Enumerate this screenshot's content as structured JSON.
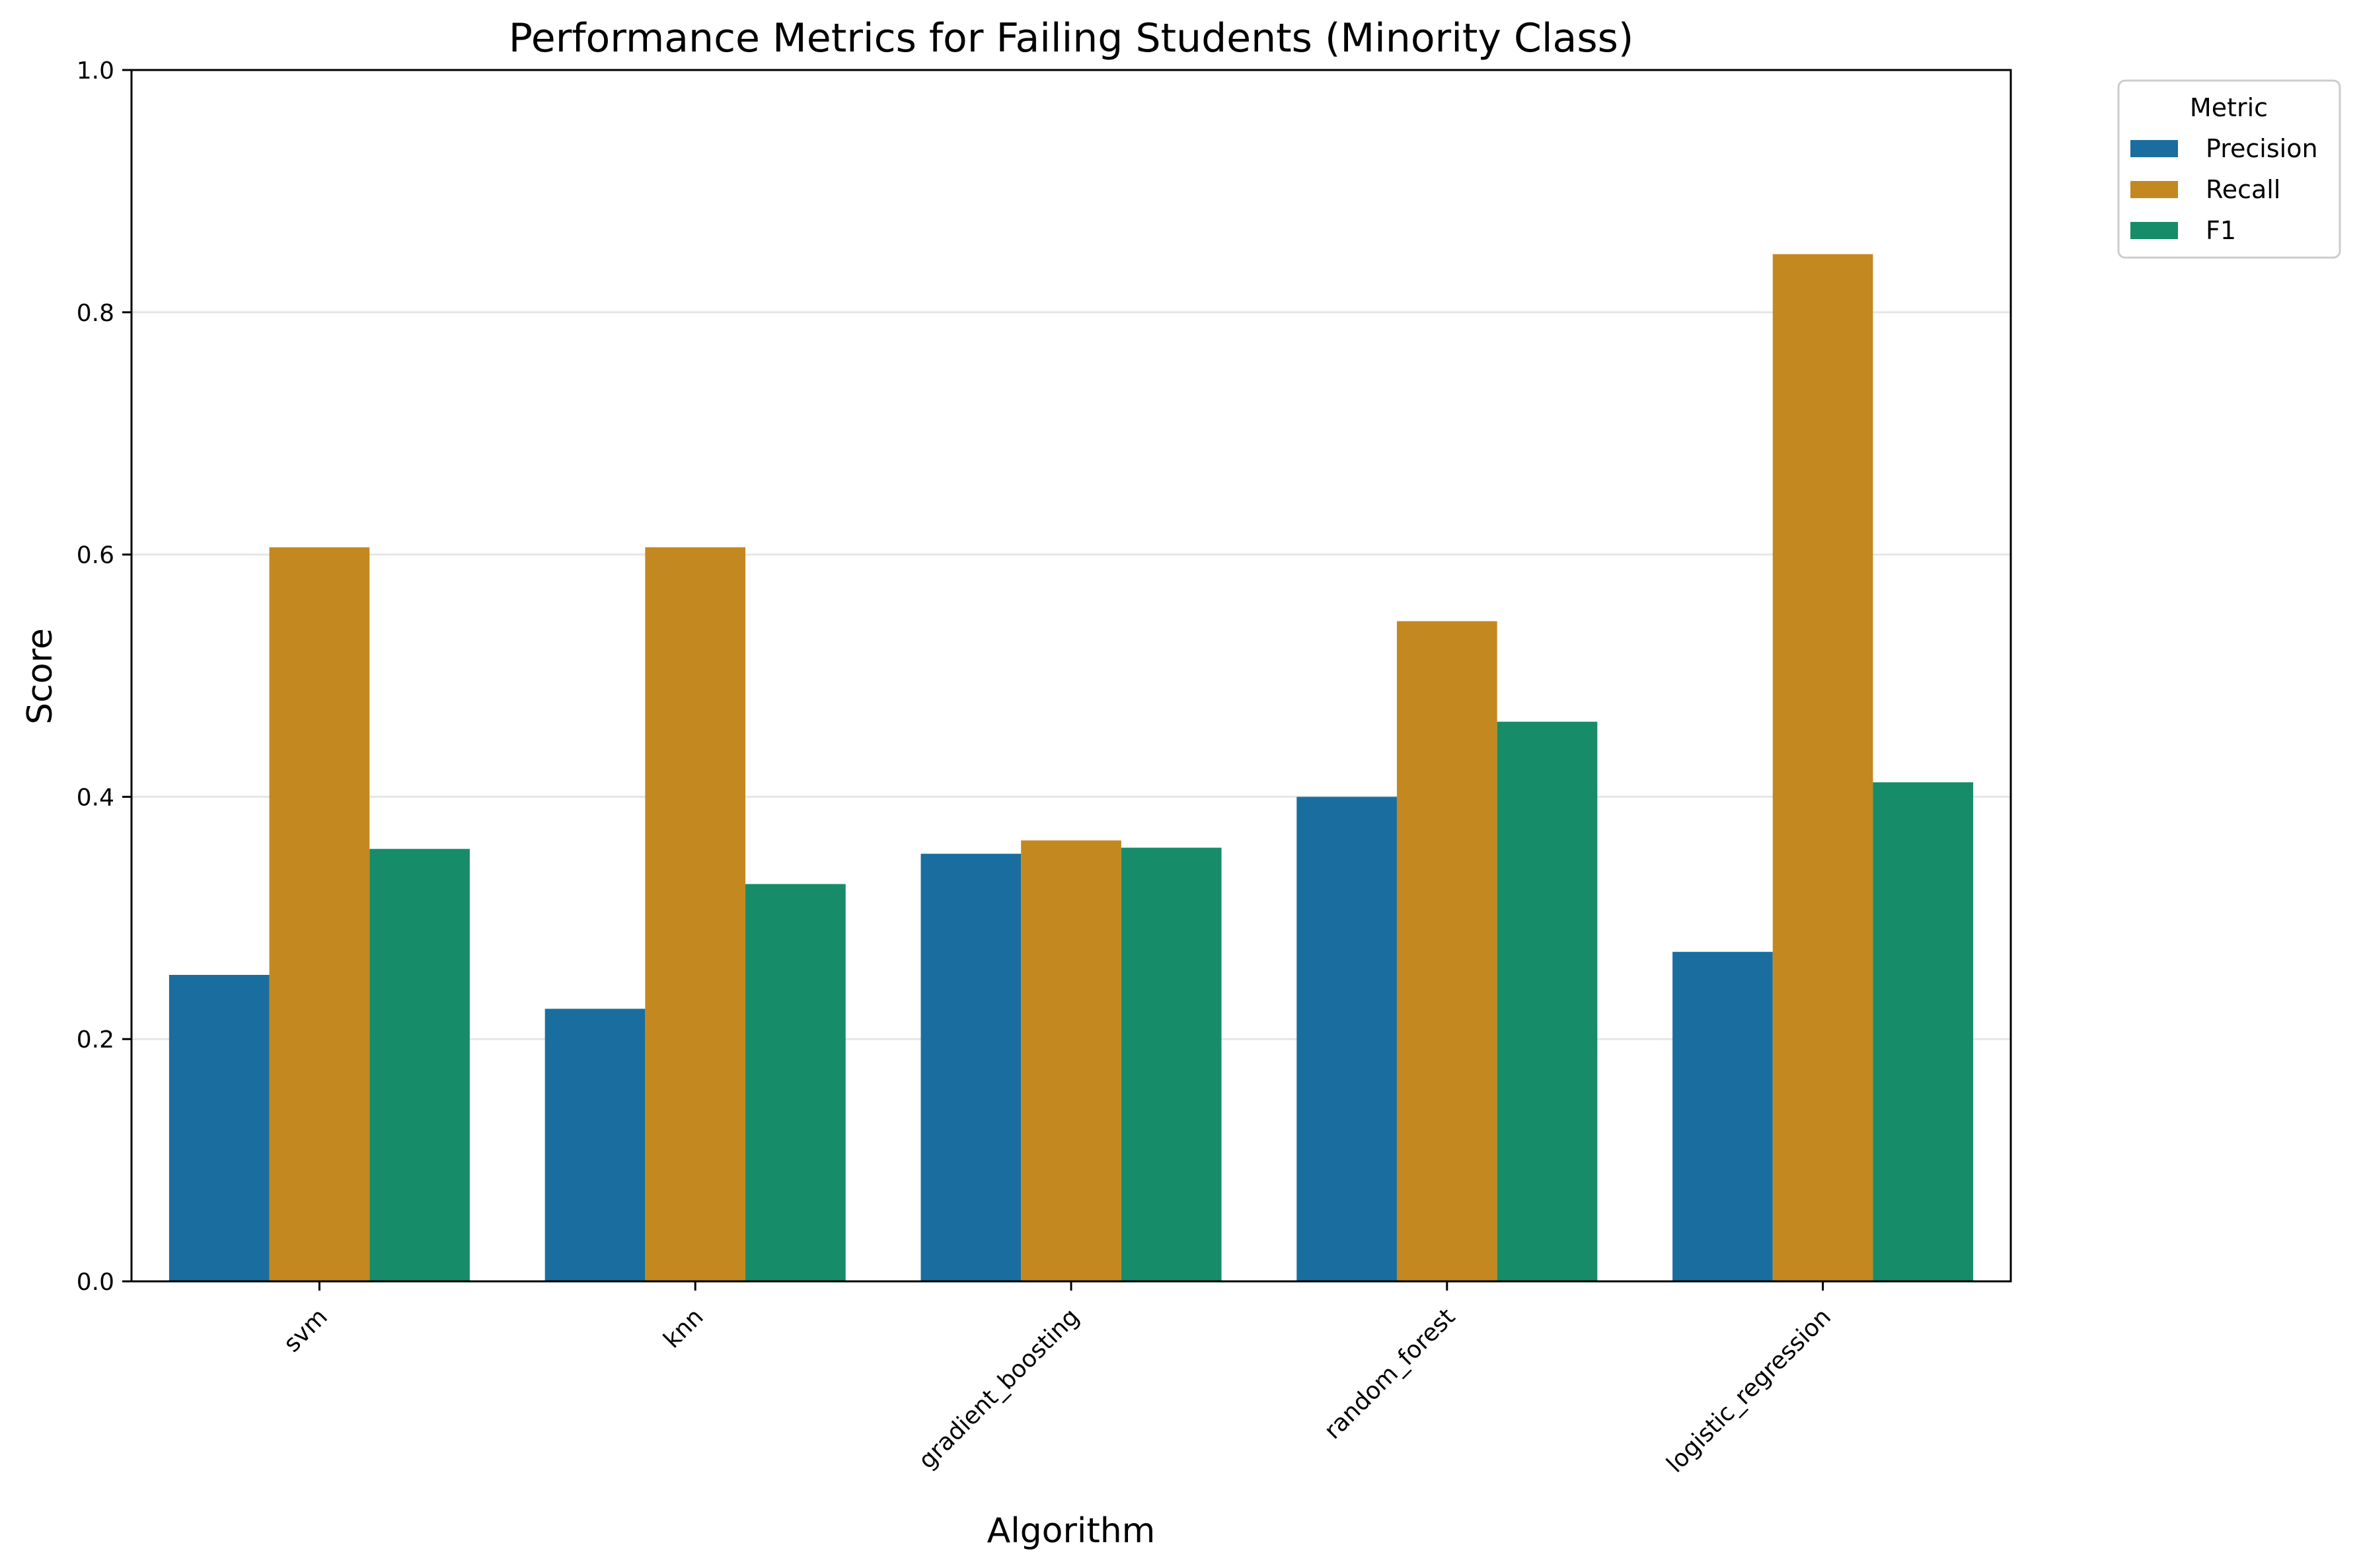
{
  "chart_data": {
    "type": "bar",
    "title": "Performance Metrics for Failing Students (Minority Class)",
    "xlabel": "Algorithm",
    "ylabel": "Score",
    "ylim": [
      0,
      1.0
    ],
    "yticks": [
      "0.0",
      "0.2",
      "0.4",
      "0.6",
      "0.8",
      "1.0"
    ],
    "categories": [
      "svm",
      "knn",
      "gradient_boosting",
      "random_forest",
      "logistic_regression"
    ],
    "series": [
      {
        "name": "Precision",
        "color": "#1a6e9f",
        "values": [
          0.253,
          0.225,
          0.353,
          0.4,
          0.272
        ]
      },
      {
        "name": "Recall",
        "color": "#c48820",
        "values": [
          0.606,
          0.606,
          0.364,
          0.545,
          0.848
        ]
      },
      {
        "name": "F1",
        "color": "#168c69",
        "values": [
          0.357,
          0.328,
          0.358,
          0.462,
          0.412
        ]
      }
    ],
    "grid": "y",
    "legend": {
      "title": "Metric",
      "placement": "outside-top-right"
    }
  }
}
